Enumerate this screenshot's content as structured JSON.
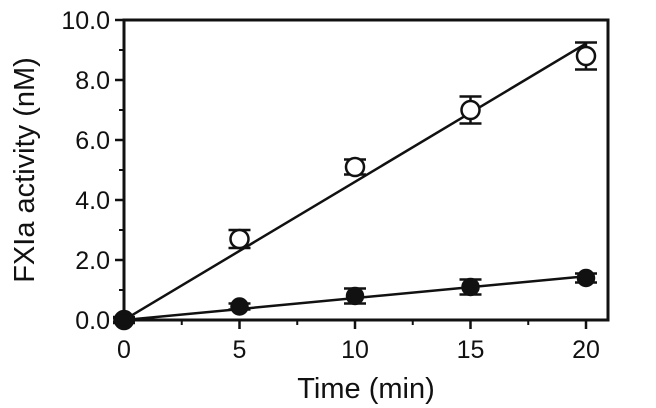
{
  "chart_data": {
    "type": "scatter",
    "xlabel": "Time (min)",
    "ylabel": "FXIa activity (nM)",
    "xlim": [
      0,
      20
    ],
    "ylim": [
      0,
      10
    ],
    "x_ticks": [
      "0",
      "5",
      "10",
      "15",
      "20"
    ],
    "y_ticks": [
      "0.0",
      "2.0",
      "4.0",
      "6.0",
      "8.0",
      "10.0"
    ],
    "grid": false,
    "legend": "none",
    "series": [
      {
        "marker": "open-circle",
        "x": [
          0,
          5,
          10,
          15,
          20
        ],
        "y": [
          0.0,
          2.7,
          5.1,
          7.0,
          8.8
        ],
        "error": [
          0.1,
          0.3,
          0.25,
          0.45,
          0.45
        ],
        "fit_line": true
      },
      {
        "marker": "filled-circle",
        "x": [
          0,
          5,
          10,
          15,
          20
        ],
        "y": [
          0.0,
          0.45,
          0.8,
          1.1,
          1.4
        ],
        "error": [
          0.05,
          0.1,
          0.25,
          0.25,
          0.15
        ],
        "fit_line": true
      }
    ],
    "colors": {
      "line": "#111111",
      "marker_fill_open": "#ffffff",
      "marker_fill_filled": "#111111"
    }
  }
}
